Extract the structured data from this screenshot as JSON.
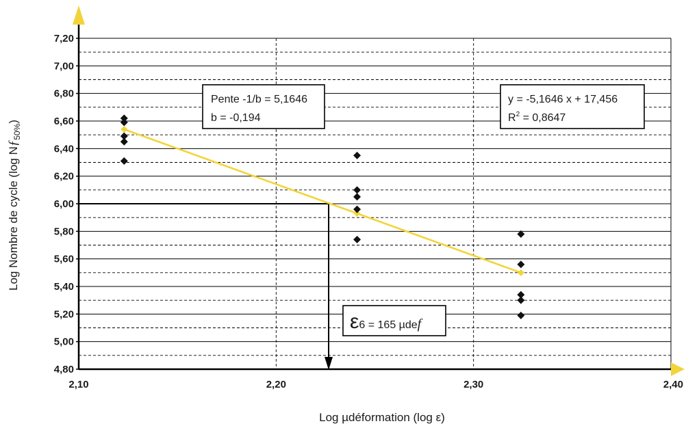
{
  "chart_data": {
    "type": "scatter",
    "xlabel": "Log µdéformation (log ε)",
    "ylabel": "Log Nombre de cycle (log N",
    "ylabel_sub": "50%",
    "ylabel_end": ")",
    "xlim": [
      2.1,
      2.4
    ],
    "ylim": [
      4.8,
      7.2
    ],
    "x_ticks": [
      2.1,
      2.2,
      2.3,
      2.4
    ],
    "x_tick_labels": [
      "2,10",
      "2,20",
      "2,30",
      "2,40"
    ],
    "y_ticks": [
      4.8,
      5.0,
      5.2,
      5.4,
      5.6,
      5.8,
      6.0,
      6.2,
      6.4,
      6.6,
      6.8,
      7.0,
      7.2
    ],
    "y_tick_labels": [
      "4,80",
      "5,00",
      "5,20",
      "5,40",
      "5,60",
      "5,80",
      "6,00",
      "6,20",
      "6,40",
      "6,60",
      "6,80",
      "7,00",
      "7,20"
    ],
    "grid": "major solid horizontal, minor dashed horizontal, dashed vertical",
    "points": [
      {
        "x": 2.123,
        "y": 6.62
      },
      {
        "x": 2.123,
        "y": 6.59
      },
      {
        "x": 2.123,
        "y": 6.49
      },
      {
        "x": 2.123,
        "y": 6.45
      },
      {
        "x": 2.123,
        "y": 6.31
      },
      {
        "x": 2.241,
        "y": 6.35
      },
      {
        "x": 2.241,
        "y": 6.1
      },
      {
        "x": 2.241,
        "y": 6.05
      },
      {
        "x": 2.241,
        "y": 5.96
      },
      {
        "x": 2.241,
        "y": 5.74
      },
      {
        "x": 2.324,
        "y": 5.78
      },
      {
        "x": 2.324,
        "y": 5.56
      },
      {
        "x": 2.324,
        "y": 5.34
      },
      {
        "x": 2.324,
        "y": 5.3
      },
      {
        "x": 2.324,
        "y": 5.19
      }
    ],
    "trend": {
      "color": "#f2d43a",
      "points": [
        {
          "x": 2.123,
          "y": 6.54
        },
        {
          "x": 2.241,
          "y": 5.93
        },
        {
          "x": 2.324,
          "y": 5.5
        }
      ]
    },
    "reference": {
      "x": 2.2266,
      "y": 6.0
    },
    "box_slope": {
      "line1": "Pente -1/b = 5,1646",
      "line2": "b = -0,194"
    },
    "box_equation": {
      "line1": "y = -5,1646 x + 17,456",
      "line2_label": "R",
      "line2_sup": "2",
      "line2_value": " = 0,8647"
    },
    "box_epsilon": {
      "symbol": "ε",
      "sub": "6",
      "text": " = 165 µde",
      "unit": "f"
    },
    "colors": {
      "axis": "#000000",
      "arrow": "#f2d43a",
      "marker": "#111111"
    }
  }
}
